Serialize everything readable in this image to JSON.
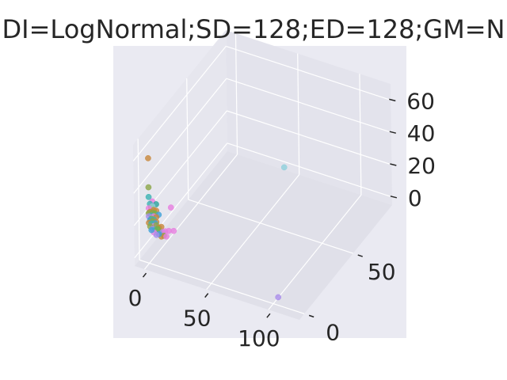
{
  "chart_data": {
    "type": "scatter",
    "title": "DI=LogNormal;SD=128;ED=128;GM=N",
    "xlabel": "",
    "ylabel": "",
    "zlabel": "",
    "xlim": [
      -8,
      125
    ],
    "ylim": [
      -5,
      90
    ],
    "zlim": [
      -5,
      70
    ],
    "xticks": [
      "0",
      "50",
      "100"
    ],
    "yticks": [
      "0",
      "50"
    ],
    "zticks": [
      "0",
      "20",
      "40",
      "60"
    ],
    "grid": true,
    "background": "#eaeaf2",
    "points": [
      {
        "x": 0,
        "y": 0,
        "z": 60,
        "color": "#c8873b"
      },
      {
        "x": 0,
        "y": 0,
        "z": 42,
        "color": "#8ca648"
      },
      {
        "x": 62,
        "y": 60,
        "z": 25,
        "color": "#8fcfdc"
      },
      {
        "x": 18,
        "y": 0,
        "z": 34,
        "color": "#e77ee0"
      },
      {
        "x": 0,
        "y": 0,
        "z": 36,
        "color": "#3bb3b3"
      },
      {
        "x": 3,
        "y": 0,
        "z": 34,
        "color": "#e77ee0"
      },
      {
        "x": 6,
        "y": 0,
        "z": 33,
        "color": "#2aa39c"
      },
      {
        "x": 1,
        "y": 0,
        "z": 32,
        "color": "#3bb3b3"
      },
      {
        "x": 2,
        "y": 0,
        "z": 30,
        "color": "#8ca648"
      },
      {
        "x": 3,
        "y": 0,
        "z": 31,
        "color": "#8fcfdc"
      },
      {
        "x": 0,
        "y": 0,
        "z": 29,
        "color": "#e77ee0"
      },
      {
        "x": 4,
        "y": 0,
        "z": 29,
        "color": "#c8873b"
      },
      {
        "x": 6,
        "y": 0,
        "z": 29,
        "color": "#c8873b"
      },
      {
        "x": 1,
        "y": 0,
        "z": 27,
        "color": "#c8873b"
      },
      {
        "x": 3,
        "y": 0,
        "z": 27,
        "color": "#8ca648"
      },
      {
        "x": 5,
        "y": 0,
        "z": 27,
        "color": "#6fb34a"
      },
      {
        "x": 8,
        "y": 0,
        "z": 27,
        "color": "#3ea1d8"
      },
      {
        "x": 0,
        "y": 0,
        "z": 26,
        "color": "#8ca648"
      },
      {
        "x": 2,
        "y": 0,
        "z": 25,
        "color": "#3bb3b3"
      },
      {
        "x": 4,
        "y": 0,
        "z": 25,
        "color": "#e77ee0"
      },
      {
        "x": 6,
        "y": 0,
        "z": 25,
        "color": "#c8873b"
      },
      {
        "x": 0,
        "y": 0,
        "z": 24,
        "color": "#a98cea"
      },
      {
        "x": 2,
        "y": 0,
        "z": 23,
        "color": "#6fb34a"
      },
      {
        "x": 4,
        "y": 0,
        "z": 23,
        "color": "#3bb3b3"
      },
      {
        "x": 1,
        "y": 0,
        "z": 22,
        "color": "#3ea1d8"
      },
      {
        "x": 3,
        "y": 0,
        "z": 22,
        "color": "#8ca648"
      },
      {
        "x": 6,
        "y": 0,
        "z": 22,
        "color": "#c8873b"
      },
      {
        "x": 5,
        "y": 0,
        "z": 21,
        "color": "#3ea1d8"
      },
      {
        "x": 0,
        "y": 0,
        "z": 20,
        "color": "#c8873b"
      },
      {
        "x": 2,
        "y": 0,
        "z": 20,
        "color": "#3bb3b3"
      },
      {
        "x": 4,
        "y": 0,
        "z": 19,
        "color": "#e77ee0"
      },
      {
        "x": 6,
        "y": 0,
        "z": 20,
        "color": "#8ca648"
      },
      {
        "x": 8,
        "y": 0,
        "z": 19,
        "color": "#c8873b"
      },
      {
        "x": 10,
        "y": 0,
        "z": 20,
        "color": "#c8873b"
      },
      {
        "x": 1,
        "y": 0,
        "z": 18,
        "color": "#8ca648"
      },
      {
        "x": 3,
        "y": 0,
        "z": 17,
        "color": "#a98cea"
      },
      {
        "x": 5,
        "y": 0,
        "z": 17,
        "color": "#3bb3b3"
      },
      {
        "x": 7,
        "y": 0,
        "z": 18,
        "color": "#6fb34a"
      },
      {
        "x": 9,
        "y": 0,
        "z": 16,
        "color": "#8ca648"
      },
      {
        "x": 11,
        "y": 0,
        "z": 17,
        "color": "#a98cea"
      },
      {
        "x": 13,
        "y": 0,
        "z": 18,
        "color": "#e77ee0"
      },
      {
        "x": 16,
        "y": 0,
        "z": 19,
        "color": "#e77ee0"
      },
      {
        "x": 12,
        "y": 0,
        "z": 15,
        "color": "#8ca648"
      },
      {
        "x": 10,
        "y": 0,
        "z": 14,
        "color": "#c8873b"
      },
      {
        "x": 8,
        "y": 0,
        "z": 15,
        "color": "#3ea1d8"
      },
      {
        "x": 4,
        "y": 0,
        "z": 15,
        "color": "#e77ee0"
      },
      {
        "x": 2,
        "y": 0,
        "z": 16,
        "color": "#3ea1d8"
      },
      {
        "x": 6,
        "y": 0,
        "z": 14,
        "color": "#a98cea"
      },
      {
        "x": 14,
        "y": 0,
        "z": 15,
        "color": "#e77ee0"
      },
      {
        "x": 20,
        "y": 0,
        "z": 20,
        "color": "#e77ee0"
      },
      {
        "x": 104,
        "y": 0,
        "z": 0,
        "color": "#a98cea"
      }
    ]
  }
}
